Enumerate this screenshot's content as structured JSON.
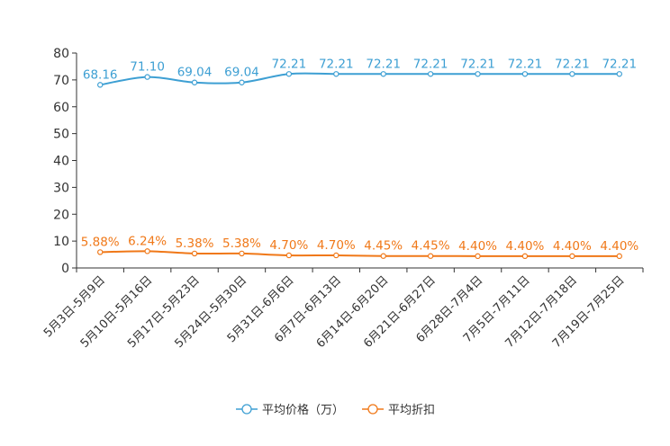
{
  "chart_data": {
    "type": "line",
    "categories": [
      "5月3日-5月9日",
      "5月10日-5月16日",
      "5月17日-5月23日",
      "5月24日-5月30日",
      "5月31日-6月6日",
      "6月7日-6月13日",
      "6月14日-6月20日",
      "6月21日-6月27日",
      "6月28日-7月4日",
      "7月5日-7月11日",
      "7月12日-7月18日",
      "7月19日-7月25日"
    ],
    "series": [
      {
        "name": "平均价格（万）",
        "color": "#3d9fd3",
        "values": [
          68.16,
          71.1,
          69.04,
          69.04,
          72.21,
          72.21,
          72.21,
          72.21,
          72.21,
          72.21,
          72.21,
          72.21
        ],
        "labels": [
          "68.16",
          "71.10",
          "69.04",
          "69.04",
          "72.21",
          "72.21",
          "72.21",
          "72.21",
          "72.21",
          "72.21",
          "72.21",
          "72.21"
        ]
      },
      {
        "name": "平均折扣",
        "color": "#f07818",
        "values": [
          5.88,
          6.24,
          5.38,
          5.38,
          4.7,
          4.7,
          4.45,
          4.45,
          4.4,
          4.4,
          4.4,
          4.4
        ],
        "labels": [
          "5.88%",
          "6.24%",
          "5.38%",
          "5.38%",
          "4.70%",
          "4.70%",
          "4.45%",
          "4.45%",
          "4.40%",
          "4.40%",
          "4.40%",
          "4.40%"
        ]
      }
    ],
    "yticks": [
      "0",
      "10",
      "20",
      "30",
      "40",
      "50",
      "60",
      "70",
      "80"
    ],
    "ylim": [
      0,
      80
    ],
    "legend_position": "bottom-center",
    "grid": false
  }
}
